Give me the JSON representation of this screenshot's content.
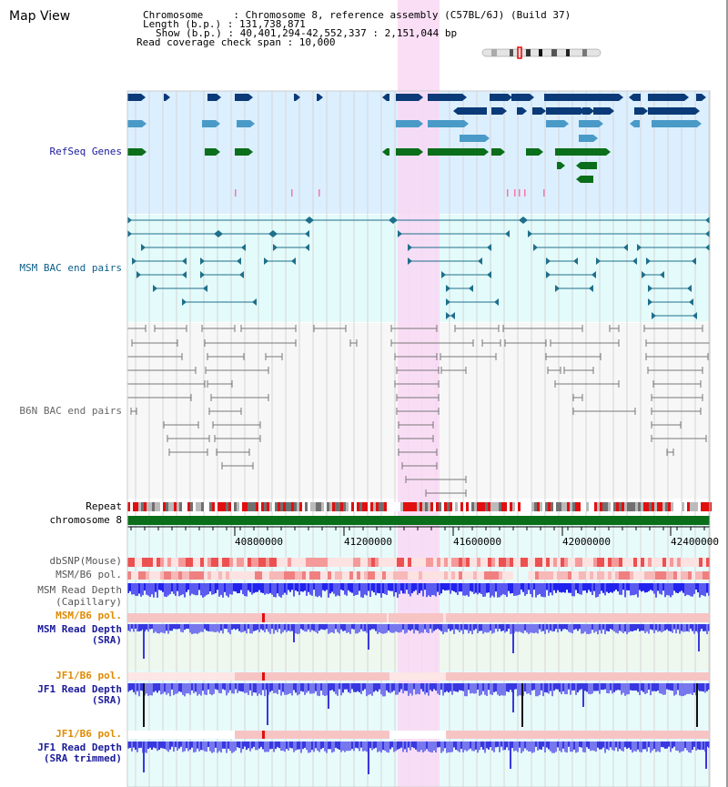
{
  "view_title": "Map View",
  "header": {
    "lines": [
      "Chromosome     : Chromosome 8, reference assembly (C57BL/6J) (Build 37)",
      "Length (b.p.) : 131,738,871",
      "Show (b.p.) : 40,401,294-42,552,337 : 2,151,044 bp",
      "Read coverage check span : 10,000"
    ]
  },
  "colors": {
    "refseq_bg": "#dcefff",
    "msm_bac_bg": "#e3fbfb",
    "b6n_bac_bg": "#f7f7f7",
    "highlight": "#f9d8f5",
    "gene_dark": "#0a3a78",
    "gene_mid": "#4a9ac8",
    "gene_green": "#0a6e1a",
    "msm_pair": "#1f6f8b",
    "b6n_pair": "#777777",
    "chromosome_bar": "#0a6e1a",
    "read_depth": "#2222ee",
    "read_depth_light": "#7777ee"
  },
  "ruler": {
    "ticks": [
      "40800000",
      "41200000",
      "41600000",
      "42000000",
      "42400000"
    ]
  },
  "tracks": [
    {
      "id": "refseq",
      "label": "RefSeq Genes",
      "color": "#1a1a9a"
    },
    {
      "id": "msm_bac",
      "label": "MSM BAC end pairs",
      "color": "#0c5f8a"
    },
    {
      "id": "b6n_bac",
      "label": "B6N BAC end pairs",
      "color": "#666666"
    },
    {
      "id": "repeat",
      "label": "Repeat",
      "color": "#000000"
    },
    {
      "id": "chromosome",
      "label": "chromosome 8",
      "color": "#000000"
    },
    {
      "id": "dbsnp",
      "label": "dbSNP(Mouse)",
      "color": "#555555"
    },
    {
      "id": "msm_b6_pol_1",
      "label": "MSM/B6 pol.",
      "color": "#555555"
    },
    {
      "id": "msm_depth_cap_1",
      "label": "MSM Read Depth",
      "color": "#555555"
    },
    {
      "id": "msm_depth_cap_2",
      "label": "(Capillary)",
      "color": "#555555"
    },
    {
      "id": "msm_b6_pol_2",
      "label": "MSM/B6 pol.",
      "color": "#e08a00"
    },
    {
      "id": "msm_depth_sra_1",
      "label": "MSM Read Depth",
      "color": "#1a1a9a"
    },
    {
      "id": "msm_depth_sra_2",
      "label": "(SRA)",
      "color": "#1a1a9a"
    },
    {
      "id": "jf1_b6_pol_1",
      "label": "JF1/B6 pol.",
      "color": "#e08a00"
    },
    {
      "id": "jf1_depth_sra_1",
      "label": "JF1 Read Depth",
      "color": "#1a1a9a"
    },
    {
      "id": "jf1_depth_sra_2",
      "label": "(SRA)",
      "color": "#1a1a9a"
    },
    {
      "id": "jf1_b6_pol_2",
      "label": "JF1/B6 pol.",
      "color": "#e08a00"
    },
    {
      "id": "jf1_depth_trim_1",
      "label": "JF1 Read Depth",
      "color": "#1a1a9a"
    },
    {
      "id": "jf1_depth_trim_2",
      "label": "(SRA trimmed)",
      "color": "#1a1a9a"
    }
  ]
}
